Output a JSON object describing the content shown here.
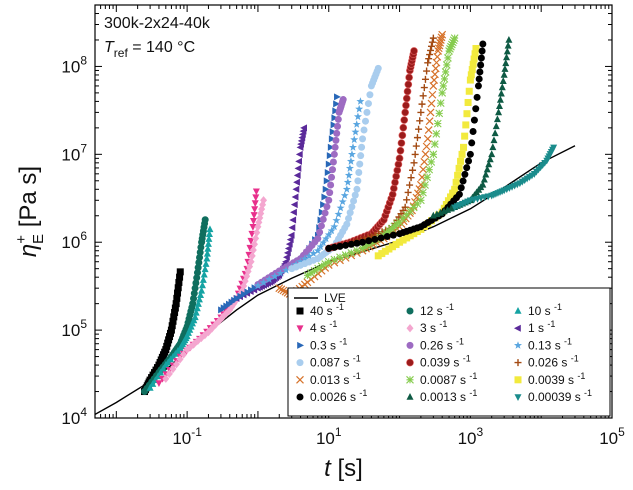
{
  "chart_data": {
    "type": "scatter",
    "title_lines": [
      "300k-2x24-40k",
      "T",
      "ref",
      " = 140 °C"
    ],
    "xlabel": {
      "main": "t",
      "unit": " [s]"
    },
    "ylabel": {
      "main": "η",
      "sup": "+",
      "sub": "E",
      "unit": " [Pa s]"
    },
    "x_scale": "log",
    "y_scale": "log",
    "xlim": [
      0.005,
      100000
    ],
    "ylim": [
      10000,
      500000000
    ],
    "x_ticks": [
      {
        "value": 0.1,
        "base": "10",
        "exp": "-1"
      },
      {
        "value": 10,
        "base": "10",
        "exp": "1"
      },
      {
        "value": 1000,
        "base": "10",
        "exp": "3"
      },
      {
        "value": 100000,
        "base": "10",
        "exp": "5"
      }
    ],
    "y_ticks": [
      {
        "value": 10000,
        "base": "10",
        "exp": "4"
      },
      {
        "value": 100000,
        "base": "10",
        "exp": "5"
      },
      {
        "value": 1000000,
        "base": "10",
        "exp": "6"
      },
      {
        "value": 10000000,
        "base": "10",
        "exp": "7"
      },
      {
        "value": 100000000,
        "base": "10",
        "exp": "8"
      }
    ],
    "legend_position": "bottom-right",
    "lve": {
      "name": "LVE",
      "x": [
        0.005,
        0.01,
        0.03,
        0.06,
        0.1,
        0.2,
        0.5,
        1,
        3,
        10,
        30,
        100,
        300,
        1000,
        3000,
        10000,
        30000
      ],
      "y": [
        11000,
        15000,
        26000,
        40000,
        58000,
        95000,
        170000,
        250000,
        390000,
        600000,
        780000,
        1050000,
        1500000,
        2400000,
        4200000,
        8000000,
        12500000
      ]
    },
    "series": [
      {
        "name": "40 s",
        "unit": "-1",
        "marker": "square",
        "color": "#000000",
        "x": [
          0.025,
          0.03,
          0.04,
          0.05,
          0.06,
          0.07,
          0.08
        ],
        "y": [
          20000,
          27000,
          40000,
          60000,
          100000,
          200000,
          460000
        ]
      },
      {
        "name": "12 s",
        "unit": "-1",
        "marker": "circle",
        "color": "#0f6e5e",
        "x": [
          0.025,
          0.04,
          0.06,
          0.08,
          0.1,
          0.12,
          0.14,
          0.16,
          0.18
        ],
        "y": [
          20000,
          33000,
          50000,
          70000,
          110000,
          200000,
          450000,
          1000000,
          1800000
        ]
      },
      {
        "name": "10 s",
        "unit": "-1",
        "marker": "triangle-up",
        "color": "#15a3a3",
        "x": [
          0.03,
          0.05,
          0.08,
          0.1,
          0.13,
          0.16,
          0.19,
          0.21
        ],
        "y": [
          22000,
          40000,
          62000,
          85000,
          140000,
          280000,
          650000,
          1400000
        ]
      },
      {
        "name": "4 s",
        "unit": "-1",
        "marker": "triangle-down",
        "color": "#e8308c",
        "x": [
          0.04,
          0.08,
          0.15,
          0.3,
          0.5,
          0.7,
          0.85,
          0.95
        ],
        "y": [
          25000,
          50000,
          80000,
          140000,
          230000,
          500000,
          1500000,
          3800000
        ]
      },
      {
        "name": "3 s",
        "unit": "-1",
        "marker": "diamond",
        "color": "#f4a6cf",
        "x": [
          0.05,
          0.1,
          0.2,
          0.4,
          0.6,
          0.8,
          1.0,
          1.2
        ],
        "y": [
          28000,
          60000,
          95000,
          170000,
          280000,
          600000,
          1500000,
          3000000
        ]
      },
      {
        "name": "1 s",
        "unit": "-1",
        "marker": "triangle-left",
        "color": "#5b2a9a",
        "x": [
          0.5,
          1,
          1.5,
          2,
          2.5,
          3,
          3.5,
          4,
          4.5
        ],
        "y": [
          230000,
          300000,
          350000,
          420000,
          600000,
          1200000,
          4000000,
          12000000,
          20000000
        ]
      },
      {
        "name": "0.3 s",
        "unit": "-1",
        "marker": "triangle-right",
        "color": "#2968b8",
        "x": [
          0.3,
          0.5,
          1,
          2,
          4,
          7,
          9,
          11,
          13
        ],
        "y": [
          170000,
          230000,
          320000,
          450000,
          600000,
          1200000,
          4000000,
          15000000,
          45000000
        ]
      },
      {
        "name": "0.26 s",
        "unit": "-1",
        "marker": "circle",
        "color": "#9d6bc2",
        "x": [
          1,
          2,
          4,
          7,
          10,
          12,
          14,
          16
        ],
        "y": [
          330000,
          470000,
          650000,
          1100000,
          3000000,
          10000000,
          30000000,
          42000000
        ]
      },
      {
        "name": "0.13 s",
        "unit": "-1",
        "marker": "star",
        "color": "#5aa6e0",
        "x": [
          1,
          3,
          7,
          12,
          18,
          22,
          28
        ],
        "y": [
          320000,
          520000,
          800000,
          1500000,
          4000000,
          12000000,
          40000000
        ]
      },
      {
        "name": "0.087 s",
        "unit": "-1",
        "marker": "circle",
        "color": "#a9cdee",
        "x": [
          3,
          7,
          12,
          18,
          25,
          30,
          40,
          50
        ],
        "y": [
          500000,
          650000,
          900000,
          1600000,
          4000000,
          15000000,
          60000000,
          95000000
        ]
      },
      {
        "name": "0.039 s",
        "unit": "-1",
        "marker": "circle-half",
        "color": "#9b1b1b",
        "x": [
          10,
          20,
          40,
          60,
          80,
          100,
          120,
          140,
          160
        ],
        "y": [
          850000,
          1000000,
          1250000,
          1800000,
          3500000,
          9000000,
          30000000,
          90000000,
          150000000
        ]
      },
      {
        "name": "0.026 s",
        "unit": "-1",
        "marker": "plus",
        "color": "#a34a12",
        "x": [
          20,
          40,
          80,
          120,
          160,
          200,
          250,
          300
        ],
        "y": [
          950000,
          1150000,
          1500000,
          2500000,
          8000000,
          30000000,
          110000000,
          210000000
        ]
      },
      {
        "name": "0.013 s",
        "unit": "-1",
        "marker": "x",
        "color": "#d6722a",
        "x": [
          2,
          3,
          5,
          10,
          30,
          60,
          100,
          150,
          200,
          250,
          300,
          350,
          400
        ],
        "y": [
          300000,
          250000,
          350000,
          550000,
          800000,
          1100000,
          1500000,
          2300000,
          4500000,
          15000000,
          60000000,
          150000000,
          230000000
        ]
      },
      {
        "name": "0.0087 s",
        "unit": "-1",
        "marker": "x-plus",
        "color": "#86cc4e",
        "x": [
          5,
          10,
          30,
          60,
          100,
          200,
          300,
          400,
          500,
          600
        ],
        "y": [
          420000,
          600000,
          850000,
          1200000,
          1700000,
          3000000,
          10000000,
          50000000,
          150000000,
          210000000
        ]
      },
      {
        "name": "0.0039 s",
        "unit": "-1",
        "marker": "square",
        "color": "#f2ea3d",
        "x": [
          50,
          100,
          200,
          400,
          600,
          800,
          1000,
          1200
        ],
        "y": [
          700000,
          1000000,
          1400000,
          2200000,
          4000000,
          12000000,
          70000000,
          160000000
        ]
      },
      {
        "name": "0.0026 s",
        "unit": "-1",
        "marker": "circle",
        "color": "#000000",
        "x": [
          10,
          30,
          100,
          200,
          400,
          700,
          1000,
          1300,
          1500
        ],
        "y": [
          850000,
          1000000,
          1250000,
          1500000,
          2100000,
          3500000,
          10000000,
          60000000,
          180000000
        ]
      },
      {
        "name": "0.0013 s",
        "unit": "-1",
        "marker": "triangle-up",
        "color": "#0e5a44",
        "x": [
          300,
          600,
          1000,
          1500,
          2000,
          2500,
          3000,
          3500
        ],
        "y": [
          2000000,
          2500000,
          3000000,
          4500000,
          10000000,
          30000000,
          80000000,
          200000000
        ]
      },
      {
        "name": "0.00039 s",
        "unit": "-1",
        "marker": "triangle-down",
        "color": "#1a8c8c",
        "x": [
          600,
          1000,
          2000,
          3000,
          5000,
          8000,
          12000,
          15000
        ],
        "y": [
          2500000,
          3000000,
          3400000,
          3900000,
          4700000,
          6000000,
          8500000,
          12000000
        ]
      }
    ],
    "legend_order": [
      "lve",
      "40 s",
      "12 s",
      "10 s",
      "4 s",
      "3 s",
      "1 s",
      "0.3 s",
      "0.26 s",
      "0.13 s",
      "0.087 s",
      "0.039 s",
      "0.026 s",
      "0.013 s",
      "0.0087 s",
      "0.0039 s",
      "0.0026 s",
      "0.0013 s",
      "0.00039 s"
    ]
  }
}
